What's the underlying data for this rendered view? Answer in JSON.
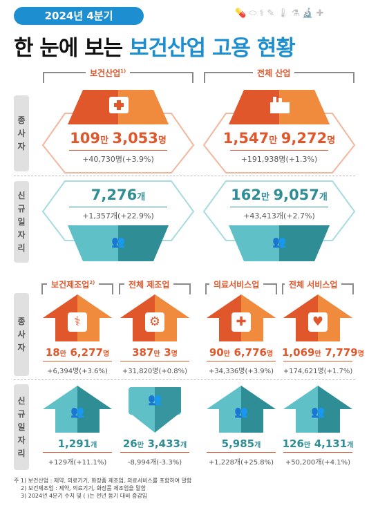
{
  "header": {
    "badge": "2024년 4분기",
    "title_part1": "한 눈에 보는",
    "title_part2": "보건산업 고용 현황",
    "icon_names": [
      "pill-icon",
      "capsule-icon",
      "stethoscope-icon",
      "syringe-icon",
      "thermometer-icon",
      "mortar-icon",
      "microscope-icon",
      "bandage-icon"
    ]
  },
  "side_labels": {
    "employees": "종사자",
    "new_jobs": "신규일자리"
  },
  "top": {
    "health_industry": {
      "label": "보건산업",
      "note": "1)",
      "employees_num1": "109",
      "employees_unit1": "만",
      "employees_num2": "3,053",
      "employees_unit2": "명",
      "employees_change": "+40,730명(+3.9%)",
      "jobs_num": "7,276",
      "jobs_unit": "개",
      "jobs_change": "+1,357개(+22.9%)"
    },
    "all_industry": {
      "label": "전체 산업",
      "employees_num1": "1,547",
      "employees_unit1": "만",
      "employees_num2": "9,272",
      "employees_unit2": "명",
      "employees_change": "+191,938명(+1.3%)",
      "jobs_num1": "162",
      "jobs_unit1": "만",
      "jobs_num2": "9,057",
      "jobs_unit2": "개",
      "jobs_change": "+43,413개(+2.7%)"
    }
  },
  "bottom": [
    {
      "label": "보건제조업",
      "note": "2)",
      "emp_num1": "18",
      "emp_unit1": "만",
      "emp_num2": "6,277",
      "emp_unit2": "명",
      "emp_change": "+6,394명(+3.6%)",
      "job_num1": "",
      "job_unit1": "",
      "job_num2": "1,291",
      "job_unit2": "개",
      "job_change": "+129개(+11.1%)",
      "job_direction": "up"
    },
    {
      "label": "전체 제조업",
      "note": "",
      "emp_num1": "387",
      "emp_unit1": "만",
      "emp_num2": "3",
      "emp_unit2": "명",
      "emp_change": "+31,820명(+0.8%)",
      "job_num1": "26",
      "job_unit1": "만",
      "job_num2": "3,433",
      "job_unit2": "개",
      "job_change": "-8,994개(-3.3%)",
      "job_direction": "down"
    },
    {
      "label": "의료서비스업",
      "note": "",
      "emp_num1": "90",
      "emp_unit1": "만",
      "emp_num2": "6,776",
      "emp_unit2": "명",
      "emp_change": "+34,336명(+3.9%)",
      "job_num1": "",
      "job_unit1": "",
      "job_num2": "5,985",
      "job_unit2": "개",
      "job_change": "+1,228개(+25.8%)",
      "job_direction": "up"
    },
    {
      "label": "전체 서비스업",
      "note": "",
      "emp_num1": "1,069",
      "emp_unit1": "만",
      "emp_num2": "7,779",
      "emp_unit2": "명",
      "emp_change": "+174,621명(+1.7%)",
      "job_num1": "126",
      "job_unit1": "만",
      "job_num2": "4,131",
      "job_unit2": "개",
      "job_change": "+50,200개(+4.1%)",
      "job_direction": "up"
    }
  ],
  "footnotes": {
    "line1": "주  1) 보건산업 : 제약, 의료기기, 화장품 제조업, 의료서비스를 포함하여 말함",
    "line2": "2) 보건제조업 : 제약, 의료기기, 화장품 제조업을 말함",
    "line3": "3) 2024년 4분기 수치 및 (  )는 전년 동기 대비 증감임"
  },
  "colors": {
    "blue": "#1d8fd0",
    "orange": "#e0572b",
    "orange_light": "#f4a03a",
    "teal": "#2f8d96",
    "teal_light": "#5fc0c8",
    "hex_border_orange": "#f2b79d",
    "hex_border_teal": "#a6dbe0",
    "side_label_bg": "#e0e0e0"
  }
}
